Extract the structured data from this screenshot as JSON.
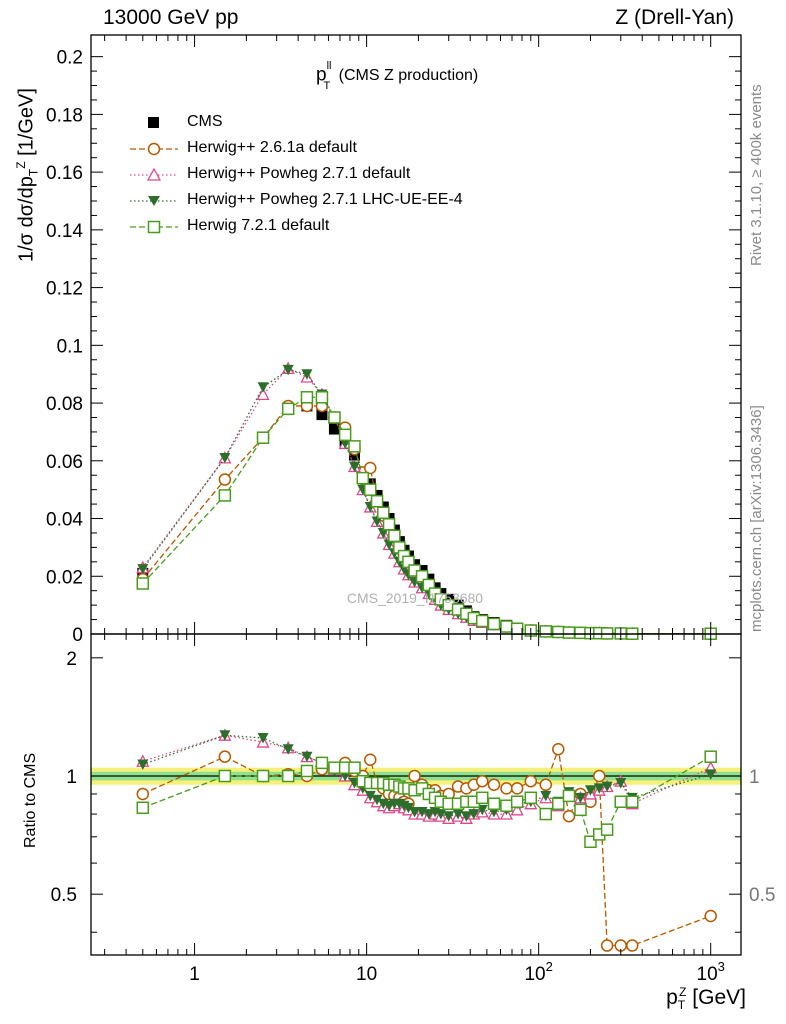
{
  "header": {
    "left": "13000 GeV pp",
    "right": "Z (Drell-Yan)"
  },
  "side_labels": {
    "rivet": "Rivet 3.1.10, ≥ 400k events",
    "mcplots": "mcplots.cern.ch [arXiv:1306.3436]"
  },
  "chart_data": [
    {
      "type": "line",
      "panel": "main",
      "title_main": "p",
      "title_sup": "ll",
      "title_sub": "T",
      "title_rest": " (CMS Z production)",
      "ylabel": "1/σ dσ/dp",
      "ylabel_sub": "T",
      "ylabel_sup": "Z",
      "ylabel_unit": " [1/GeV]",
      "watermark": "CMS_2019_I1753680",
      "xscale": "log",
      "xlim": [
        0.25,
        1500
      ],
      "ylim": [
        0,
        0.2075
      ],
      "ytick_labels": [
        "0",
        "0.02",
        "0.04",
        "0.06",
        "0.08",
        "0.1",
        "0.12",
        "0.14",
        "0.16",
        "0.18",
        "0.2"
      ],
      "legend_position": "top-left",
      "legend": [
        "CMS",
        "Herwig++ 2.6.1a default",
        "Herwig++ Powheg 2.7.1 default",
        "Herwig++ Powheg 2.7.1 LHC-UE-EE-4",
        "Herwig 7.2.1 default"
      ],
      "x": [
        0.5,
        1.5,
        2.5,
        3.5,
        4.5,
        5.5,
        6.5,
        7.5,
        8.5,
        9.5,
        10.5,
        11.5,
        12.5,
        13.5,
        14.5,
        15.5,
        16.5,
        17.5,
        19,
        21,
        23,
        25,
        27,
        30,
        34,
        38,
        42,
        47,
        55,
        65,
        75,
        90,
        110,
        130,
        150,
        175,
        200,
        225,
        250,
        300,
        350,
        1000
      ],
      "series": [
        {
          "name": "CMS",
          "color": "#000000",
          "marker": "square-filled",
          "values": [
            0.021,
            0.048,
            0.068,
            0.078,
            0.079,
            0.076,
            0.071,
            0.066,
            0.062,
            0.056,
            0.052,
            0.048,
            0.044,
            0.04,
            0.036,
            0.032,
            0.029,
            0.027,
            0.024,
            0.022,
            0.019,
            0.016,
            0.014,
            0.012,
            0.01,
            0.008,
            0.006,
            0.005,
            0.004,
            0.003,
            0.002,
            0.0014,
            0.001,
            0.0008,
            0.0006,
            0.0005,
            0.0004,
            0.0003,
            0.0003,
            0.0002,
            0.0002,
            0.0001
          ]
        },
        {
          "name": "Herwig++ 2.6.1a default",
          "color": "#b35900",
          "marker": "circle-open",
          "dash": "6,3",
          "values": [
            0.019,
            0.0535,
            0.068,
            0.079,
            0.079,
            0.079,
            0.075,
            0.0715,
            0.064,
            0.056,
            0.0575,
            0.046,
            0.041,
            0.036,
            0.032,
            0.028,
            0.025,
            0.023,
            0.02,
            0.018,
            0.016,
            0.014,
            0.012,
            0.01,
            0.0085,
            0.007,
            0.0055,
            0.0045,
            0.0035,
            0.0026,
            0.0018,
            0.0012,
            0.0009,
            0.0007,
            0.0005,
            0.0004,
            0.0003,
            0.0003,
            0.0002,
            0.0002,
            0.0001,
            0.0001
          ]
        },
        {
          "name": "Herwig++ Powheg 2.7.1 default",
          "color": "#d94a8c",
          "marker": "triangle-open",
          "dash": "1.5,2.5",
          "values": [
            0.023,
            0.061,
            0.083,
            0.092,
            0.089,
            0.083,
            0.075,
            0.066,
            0.058,
            0.05,
            0.044,
            0.039,
            0.035,
            0.031,
            0.028,
            0.025,
            0.0225,
            0.0205,
            0.018,
            0.016,
            0.014,
            0.012,
            0.01,
            0.0085,
            0.007,
            0.0058,
            0.0047,
            0.004,
            0.0032,
            0.0024,
            0.0017,
            0.0012,
            0.0009,
            0.0007,
            0.0005,
            0.0004,
            0.0003,
            0.0003,
            0.0002,
            0.0002,
            0.0001,
            0.0001
          ]
        },
        {
          "name": "Herwig++ Powheg 2.7.1 LHC-UE-EE-4",
          "color": "#2d6e2d",
          "marker": "triangle-down-filled",
          "dash": "1.5,2.5",
          "values": [
            0.0225,
            0.061,
            0.0855,
            0.0915,
            0.09,
            0.083,
            0.075,
            0.066,
            0.058,
            0.05,
            0.044,
            0.039,
            0.035,
            0.031,
            0.028,
            0.025,
            0.0225,
            0.0205,
            0.018,
            0.016,
            0.014,
            0.012,
            0.01,
            0.0085,
            0.007,
            0.0058,
            0.0047,
            0.004,
            0.0032,
            0.0024,
            0.0017,
            0.0012,
            0.0009,
            0.0007,
            0.0005,
            0.0004,
            0.0003,
            0.0003,
            0.0002,
            0.0002,
            0.0001,
            0.0001
          ]
        },
        {
          "name": "Herwig 7.2.1 default",
          "color": "#4a9a1f",
          "marker": "square-open",
          "dash": "6,3",
          "values": [
            0.0175,
            0.048,
            0.068,
            0.078,
            0.082,
            0.082,
            0.075,
            0.069,
            0.065,
            0.054,
            0.05,
            0.046,
            0.042,
            0.038,
            0.034,
            0.03,
            0.027,
            0.025,
            0.022,
            0.02,
            0.017,
            0.014,
            0.012,
            0.01,
            0.0085,
            0.007,
            0.0055,
            0.0045,
            0.0035,
            0.0026,
            0.0018,
            0.0012,
            0.0009,
            0.0007,
            0.0005,
            0.0004,
            0.0003,
            0.0003,
            0.0002,
            0.0002,
            0.0001,
            0.0001
          ]
        }
      ]
    },
    {
      "type": "line",
      "panel": "ratio",
      "ylabel": "Ratio to CMS",
      "xlabel": "p",
      "xlabel_sub": "T",
      "xlabel_sup": "Z",
      "xlabel_unit": " [GeV]",
      "xscale": "log",
      "xlim": [
        0.25,
        1500
      ],
      "ylim": [
        0.35,
        2.3
      ],
      "ytick_labels": [
        "0.5",
        "1",
        "2"
      ],
      "yticks": [
        0.5,
        1,
        2
      ],
      "xtick_labels": [
        {
          "base": "1",
          "exp": ""
        },
        {
          "base": "10",
          "exp": ""
        },
        {
          "base": "10",
          "exp": "2"
        },
        {
          "base": "10",
          "exp": "3"
        }
      ],
      "xticks": [
        1,
        10,
        100,
        1000
      ],
      "uncertainty_bands": [
        {
          "name": "stat+syst (outer)",
          "color": "#f5f07a",
          "inner_value": 0.05
        },
        {
          "name": "stat (inner)",
          "color": "#8fe08f",
          "inner_value": 0.025
        }
      ],
      "x": [
        0.5,
        1.5,
        2.5,
        3.5,
        4.5,
        5.5,
        6.5,
        7.5,
        8.5,
        9.5,
        10.5,
        11.5,
        12.5,
        13.5,
        14.5,
        15.5,
        16.5,
        17.5,
        19,
        21,
        23,
        25,
        27,
        30,
        34,
        38,
        42,
        47,
        55,
        65,
        75,
        90,
        110,
        130,
        150,
        175,
        200,
        225,
        250,
        300,
        350,
        1000
      ],
      "series": [
        {
          "name": "Herwig++ 2.6.1a default",
          "color": "#b35900",
          "marker": "circle-open",
          "dash": "6,3",
          "values": [
            0.9,
            1.12,
            1.0,
            1.01,
            1.0,
            1.04,
            1.05,
            1.08,
            1.03,
            1.0,
            1.1,
            0.96,
            0.93,
            0.9,
            0.89,
            0.88,
            0.86,
            0.85,
            1.0,
            0.95,
            0.92,
            0.92,
            0.89,
            0.9,
            0.94,
            0.93,
            0.95,
            0.97,
            0.95,
            0.93,
            0.93,
            0.97,
            0.95,
            1.17,
            0.79,
            0.9,
            0.86,
            1.0,
            0.37,
            0.37,
            0.37,
            0.44
          ]
        },
        {
          "name": "Herwig++ Powheg 2.7.1 default",
          "color": "#d94a8c",
          "marker": "triangle-open",
          "dash": "1.5,2.5",
          "values": [
            1.09,
            1.27,
            1.22,
            1.18,
            1.12,
            1.08,
            1.04,
            1.0,
            0.95,
            0.92,
            0.88,
            0.86,
            0.84,
            0.83,
            0.84,
            0.85,
            0.83,
            0.82,
            0.8,
            0.8,
            0.79,
            0.8,
            0.79,
            0.78,
            0.79,
            0.78,
            0.8,
            0.81,
            0.8,
            0.8,
            0.82,
            0.85,
            0.88,
            0.84,
            0.9,
            0.88,
            0.9,
            0.92,
            0.94,
            0.97,
            0.85,
            1.05
          ]
        },
        {
          "name": "Herwig++ Powheg 2.7.1 LHC-UE-EE-4",
          "color": "#2d6e2d",
          "marker": "triangle-down-filled",
          "dash": "1.5,2.5",
          "values": [
            1.07,
            1.27,
            1.25,
            1.17,
            1.12,
            1.08,
            1.03,
            1.0,
            0.96,
            0.93,
            0.89,
            0.87,
            0.85,
            0.84,
            0.85,
            0.85,
            0.84,
            0.83,
            0.81,
            0.81,
            0.8,
            0.81,
            0.8,
            0.79,
            0.8,
            0.79,
            0.8,
            0.82,
            0.81,
            0.82,
            0.85,
            0.86,
            0.89,
            0.86,
            0.91,
            0.88,
            0.92,
            0.93,
            0.94,
            0.96,
            0.88,
            1.01
          ]
        },
        {
          "name": "Herwig 7.2.1 default",
          "color": "#4a9a1f",
          "marker": "square-open",
          "dash": "6,3",
          "values": [
            0.83,
            1.0,
            1.0,
            1.0,
            1.03,
            1.08,
            1.05,
            1.05,
            1.05,
            0.97,
            0.96,
            0.96,
            0.96,
            0.95,
            0.95,
            0.94,
            0.93,
            0.93,
            0.92,
            0.93,
            0.9,
            0.88,
            0.86,
            0.85,
            0.85,
            0.86,
            0.86,
            0.88,
            0.85,
            0.84,
            0.86,
            0.88,
            0.8,
            0.85,
            0.89,
            0.82,
            0.68,
            0.71,
            0.73,
            0.86,
            0.86,
            1.12
          ]
        }
      ]
    }
  ]
}
